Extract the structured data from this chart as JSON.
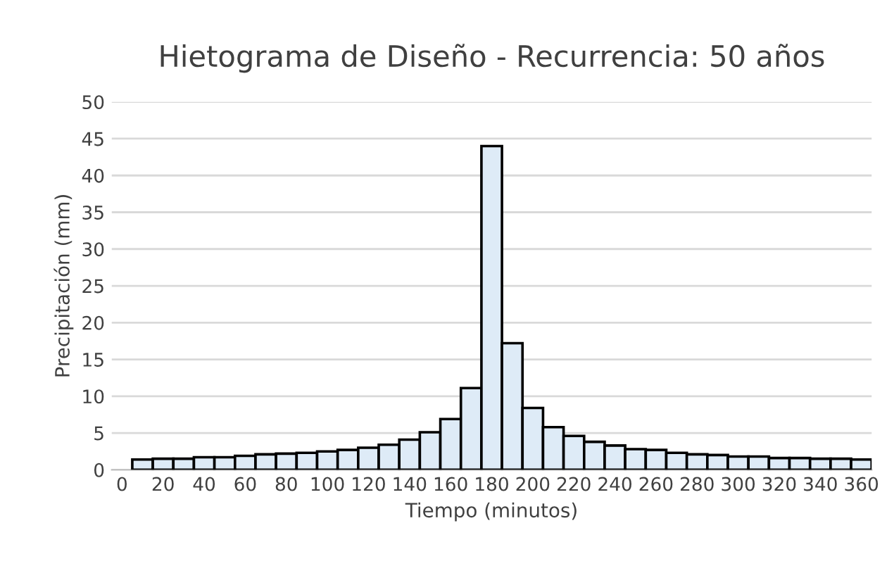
{
  "chart_data": {
    "type": "bar",
    "title": "Hietograma de Diseño - Recurrencia: 50 años",
    "xlabel": "Tiempo (minutos)",
    "ylabel": "Precipitación (mm)",
    "categories": [
      "0",
      null,
      "20",
      null,
      "40",
      null,
      "60",
      null,
      "80",
      null,
      "100",
      null,
      "120",
      null,
      "140",
      null,
      "160",
      null,
      "180",
      null,
      "200",
      null,
      "220",
      null,
      "240",
      null,
      "260",
      null,
      "280",
      null,
      "300",
      null,
      "320",
      null,
      "340",
      null,
      "360"
    ],
    "values": [
      null,
      1.4,
      1.5,
      1.5,
      1.7,
      1.7,
      1.9,
      2.1,
      2.2,
      2.3,
      2.5,
      2.7,
      3.0,
      3.4,
      4.1,
      5.1,
      6.9,
      11.1,
      44.0,
      17.2,
      8.4,
      5.8,
      4.6,
      3.8,
      3.3,
      2.8,
      2.7,
      2.3,
      2.1,
      2.0,
      1.8,
      1.8,
      1.6,
      1.6,
      1.5,
      1.5,
      1.4
    ],
    "color": "#deebf7",
    "ylim": [
      0,
      50
    ],
    "yticks": [
      0,
      5,
      10,
      15,
      20,
      25,
      30,
      35,
      40,
      45,
      50
    ],
    "grid": "y",
    "legend": false
  }
}
